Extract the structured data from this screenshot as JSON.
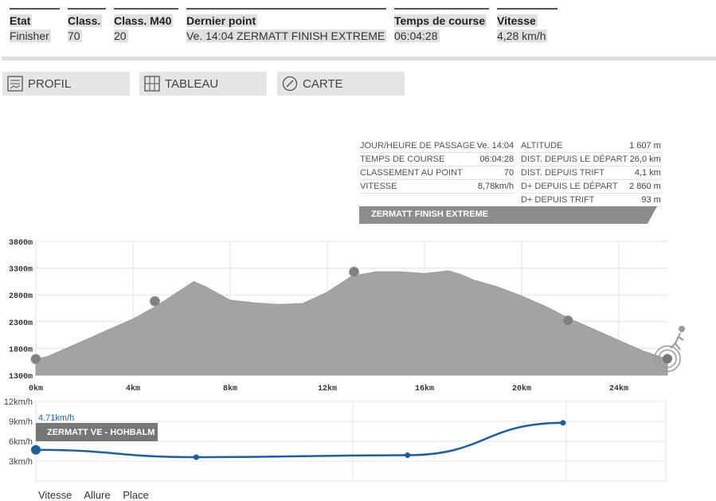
{
  "summary": [
    {
      "header": "Etat",
      "value": "Finisher"
    },
    {
      "header": "Class.",
      "value": "70"
    },
    {
      "header": "Class. M40",
      "value": "20"
    },
    {
      "header": "Dernier point",
      "value": "Ve. 14:04   ZERMATT FINISH EXTREME"
    },
    {
      "header": "Temps de course",
      "value": "06:04:28"
    },
    {
      "header": "Vitesse",
      "value": "4,28 km/h"
    }
  ],
  "tabs": [
    {
      "label": "PROFIL",
      "icon": "profile-icon"
    },
    {
      "label": "TABLEAU",
      "icon": "table-grid-icon"
    },
    {
      "label": "CARTE",
      "icon": "compass-icon"
    }
  ],
  "point_info": {
    "left": [
      {
        "label": "JOUR/HEURE DE PASSAGE",
        "value": "Ve. 14:04"
      },
      {
        "label": "TEMPS DE COURSE",
        "value": "06:04:28"
      },
      {
        "label": "CLASSEMENT AU POINT",
        "value": "70"
      },
      {
        "label": "VITESSE",
        "value": "8,78km/h"
      }
    ],
    "right": [
      {
        "label": "ALTITUDE",
        "value": "1 607 m"
      },
      {
        "label": "DIST. DEPUIS LE DÉPART",
        "value": "26,0 km"
      },
      {
        "label": "DIST. DEPUIS TRIFT",
        "value": "4,1 km"
      },
      {
        "label": "D+ DEPUIS LE DÉPART",
        "value": "2 860 m"
      },
      {
        "label": "D+ DEPUIS TRIFT",
        "value": "93 m"
      }
    ],
    "banner": "ZERMATT FINISH EXTREME"
  },
  "colors": {
    "profile_fill": "#a3a3a3",
    "speed_line": "#1f5f99",
    "banner": "#8c8c8c",
    "tip": "#777777"
  },
  "chart_data": [
    {
      "type": "area",
      "title": "",
      "xlabel": "",
      "ylabel": "",
      "xlim": [
        0,
        26
      ],
      "ylim": [
        1300,
        3800
      ],
      "x_ticks": [
        0,
        4,
        8,
        12,
        16,
        20,
        24
      ],
      "x_tick_labels": [
        "0km",
        "4km",
        "8km",
        "12km",
        "16km",
        "20km",
        "24km"
      ],
      "y_ticks": [
        1300,
        1800,
        2300,
        2800,
        3300,
        3800
      ],
      "y_tick_labels": [
        "1300m",
        "1800m",
        "2300m",
        "2800m",
        "3300m",
        "3800m"
      ],
      "series": [
        {
          "x": [
            0,
            0.5,
            1,
            2,
            3,
            4,
            5,
            6,
            6.5,
            7,
            8,
            9,
            10,
            11,
            12,
            13,
            14,
            15,
            16,
            17,
            17.5,
            18,
            19,
            20,
            21,
            22,
            23,
            24,
            25,
            26
          ],
          "y": [
            1600,
            1650,
            1750,
            1950,
            2150,
            2350,
            2600,
            2900,
            3050,
            2950,
            2700,
            2650,
            2620,
            2640,
            2850,
            3150,
            3230,
            3230,
            3200,
            3250,
            3180,
            3080,
            2950,
            2780,
            2580,
            2350,
            2150,
            1950,
            1750,
            1600
          ]
        }
      ],
      "checkpoints": [
        {
          "x": 0,
          "y": 1600
        },
        {
          "x": 4.9,
          "y": 2680
        },
        {
          "x": 13.1,
          "y": 3230
        },
        {
          "x": 21.9,
          "y": 2320
        },
        {
          "x": 26,
          "y": 1607
        }
      ],
      "grid": true
    },
    {
      "type": "line",
      "title": "",
      "ylim": [
        0,
        12
      ],
      "y_ticks": [
        3,
        6,
        9,
        12
      ],
      "y_tick_labels": [
        "3km/h",
        "6km/h",
        "9km/h",
        "12km/h"
      ],
      "series": [
        {
          "x": [
            0,
            6.6,
            15.3,
            21.7
          ],
          "y": [
            4.71,
            3.6,
            3.9,
            8.78
          ]
        }
      ],
      "first_point_label": "4.71km/h",
      "tooltip": "ZERMATT VE - HOHBALM",
      "legend": [
        "Vitesse",
        "Allure",
        "Place"
      ]
    }
  ]
}
